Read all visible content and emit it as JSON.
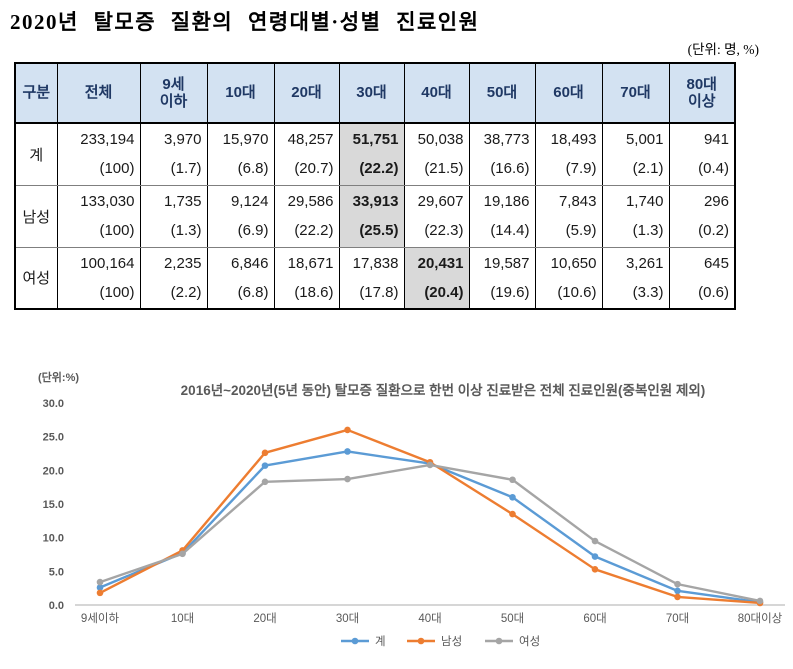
{
  "header": {
    "title": "2020년 탈모증 질환의 연령대별·성별 진료인원",
    "unit_note": "(단위: 명, %)"
  },
  "table": {
    "columns": [
      "구분",
      "전체",
      "9세\n이하",
      "10대",
      "20대",
      "30대",
      "40대",
      "50대",
      "60대",
      "70대",
      "80대\n이상"
    ],
    "rows": [
      {
        "label": "계",
        "values": [
          "233,194",
          "3,970",
          "15,970",
          "48,257",
          "51,751",
          "50,038",
          "38,773",
          "18,493",
          "5,001",
          "941"
        ],
        "pcts": [
          "(100)",
          "(1.7)",
          "(6.8)",
          "(20.7)",
          "(22.2)",
          "(21.5)",
          "(16.6)",
          "(7.9)",
          "(2.1)",
          "(0.4)"
        ],
        "highlight_index": 4
      },
      {
        "label": "남성",
        "values": [
          "133,030",
          "1,735",
          "9,124",
          "29,586",
          "33,913",
          "29,607",
          "19,186",
          "7,843",
          "1,740",
          "296"
        ],
        "pcts": [
          "(100)",
          "(1.3)",
          "(6.9)",
          "(22.2)",
          "(25.5)",
          "(22.3)",
          "(14.4)",
          "(5.9)",
          "(1.3)",
          "(0.2)"
        ],
        "highlight_index": 4
      },
      {
        "label": "여성",
        "values": [
          "100,164",
          "2,235",
          "6,846",
          "18,671",
          "17,838",
          "20,431",
          "19,587",
          "10,650",
          "3,261",
          "645"
        ],
        "pcts": [
          "(100)",
          "(2.2)",
          "(6.8)",
          "(18.6)",
          "(17.8)",
          "(20.4)",
          "(19.6)",
          "(10.6)",
          "(3.3)",
          "(0.6)"
        ],
        "highlight_index": 5
      }
    ],
    "colors": {
      "header_bg": "#d3e2f2",
      "header_text": "#1f3864",
      "highlight_bg": "#d9d9d9"
    }
  },
  "chart_data": {
    "type": "line",
    "title": "2016년~2020년(5년 동안) 탈모증 질환으로 한번 이상 진료받은 전체 진료인원(중복인원 제외)",
    "unit_label": "(단위:%)",
    "categories": [
      "9세이하",
      "10대",
      "20대",
      "30대",
      "40대",
      "50대",
      "60대",
      "70대",
      "80대이상"
    ],
    "series": [
      {
        "name": "계",
        "color": "#5b9bd5",
        "values": [
          2.6,
          7.7,
          20.7,
          22.8,
          21.0,
          16.0,
          7.2,
          2.1,
          0.4
        ]
      },
      {
        "name": "남성",
        "color": "#ed7d31",
        "values": [
          1.8,
          8.1,
          22.6,
          26.0,
          21.2,
          13.5,
          5.3,
          1.2,
          0.3
        ]
      },
      {
        "name": "여성",
        "color": "#a5a5a5",
        "values": [
          3.4,
          7.6,
          18.3,
          18.7,
          20.8,
          18.6,
          9.5,
          3.1,
          0.6
        ]
      }
    ],
    "ylim": [
      0,
      30
    ],
    "ytick_step": 5,
    "grid": false,
    "legend_position": "bottom",
    "axis_text_color": "#595959"
  }
}
